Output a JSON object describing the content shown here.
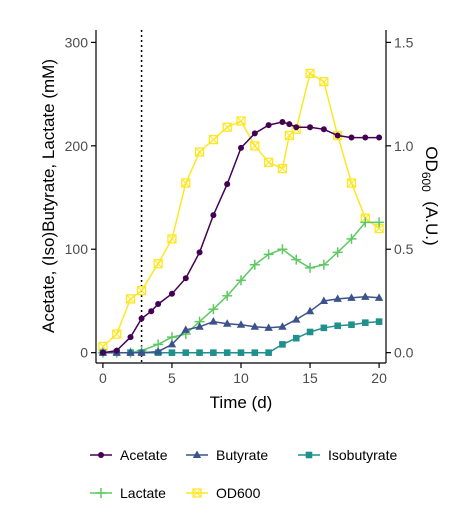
{
  "chart_data": {
    "type": "line",
    "title": "",
    "xlabel": "Time (d)",
    "ylabel": "Acetate, (Iso)Butyrate, Lactate (mM)",
    "y2label": "OD600  (A.U.)",
    "xlim": [
      -0.5,
      20.5
    ],
    "ylim": [
      -10,
      312
    ],
    "y2lim": [
      -0.05,
      1.56
    ],
    "x_ticks": [
      0,
      5,
      10,
      15,
      20
    ],
    "x_tick_labels": [
      "0",
      "5",
      "10",
      "15",
      "20"
    ],
    "y_ticks": [
      0,
      100,
      200,
      300
    ],
    "y_tick_labels": [
      "0",
      "100",
      "200",
      "300"
    ],
    "y2_ticks": [
      0.0,
      0.5,
      1.0,
      1.5
    ],
    "y2_tick_labels": [
      "0.0",
      "0.5",
      "1.0",
      "1.5"
    ],
    "vline_x": 2.8,
    "grid": false,
    "legend_position": "bottom",
    "series": [
      {
        "name": "Acetate",
        "axis": "left",
        "color": "#440154",
        "marker": "circle",
        "x": [
          0,
          1,
          2,
          2.8,
          3.5,
          4,
          5,
          6,
          7,
          8,
          9,
          10,
          11,
          12,
          13,
          13.5,
          14,
          15,
          16,
          17,
          18,
          19,
          20
        ],
        "y": [
          0,
          2,
          15,
          33,
          40,
          47,
          57,
          72,
          97,
          133,
          163,
          198,
          212,
          220,
          223,
          221,
          218,
          218,
          216,
          210,
          208,
          208,
          208
        ]
      },
      {
        "name": "Butyrate",
        "axis": "left",
        "color": "#3b528b",
        "marker": "triangle",
        "x": [
          0,
          1,
          2,
          2.8,
          4,
          5,
          6,
          7,
          8,
          9,
          10,
          11,
          12,
          13,
          14,
          15,
          16,
          17,
          18,
          19,
          20
        ],
        "y": [
          0,
          0,
          0,
          0,
          1,
          8,
          22,
          25,
          30,
          28,
          27,
          25,
          24,
          25,
          32,
          40,
          50,
          52,
          53,
          54,
          53
        ]
      },
      {
        "name": "Isobutyrate",
        "axis": "left",
        "color": "#21908c",
        "marker": "square",
        "x": [
          0,
          1,
          2,
          2.8,
          4,
          5,
          6,
          7,
          8,
          9,
          10,
          11,
          12,
          13,
          14,
          15,
          16,
          17,
          18,
          19,
          20
        ],
        "y": [
          0,
          0,
          0,
          0,
          0,
          0,
          0,
          0,
          0,
          0,
          0,
          0,
          0,
          8,
          14,
          20,
          24,
          26,
          27,
          29,
          30
        ]
      },
      {
        "name": "Lactate",
        "axis": "left",
        "color": "#5ec962",
        "marker": "plus",
        "x": [
          0,
          1,
          2,
          2.8,
          4,
          5,
          6,
          7,
          8,
          9,
          10,
          11,
          12,
          13,
          14,
          15,
          16,
          17,
          18,
          19,
          20
        ],
        "y": [
          0,
          0,
          0,
          2,
          8,
          15,
          18,
          30,
          42,
          55,
          70,
          85,
          95,
          100,
          90,
          82,
          85,
          97,
          110,
          126,
          126
        ]
      },
      {
        "name": "OD600",
        "axis": "right",
        "color": "#fde725",
        "marker": "square-x",
        "x": [
          0,
          1,
          2,
          2.8,
          4,
          5,
          6,
          7,
          8,
          9,
          10,
          11,
          12,
          13,
          13.5,
          14,
          15,
          16,
          17,
          18,
          19,
          20
        ],
        "y": [
          0.03,
          0.09,
          0.26,
          0.3,
          0.43,
          0.55,
          0.82,
          0.97,
          1.03,
          1.09,
          1.12,
          1.0,
          0.92,
          0.89,
          1.05,
          1.08,
          1.35,
          1.31,
          1.05,
          0.82,
          0.65,
          0.6
        ]
      }
    ]
  }
}
